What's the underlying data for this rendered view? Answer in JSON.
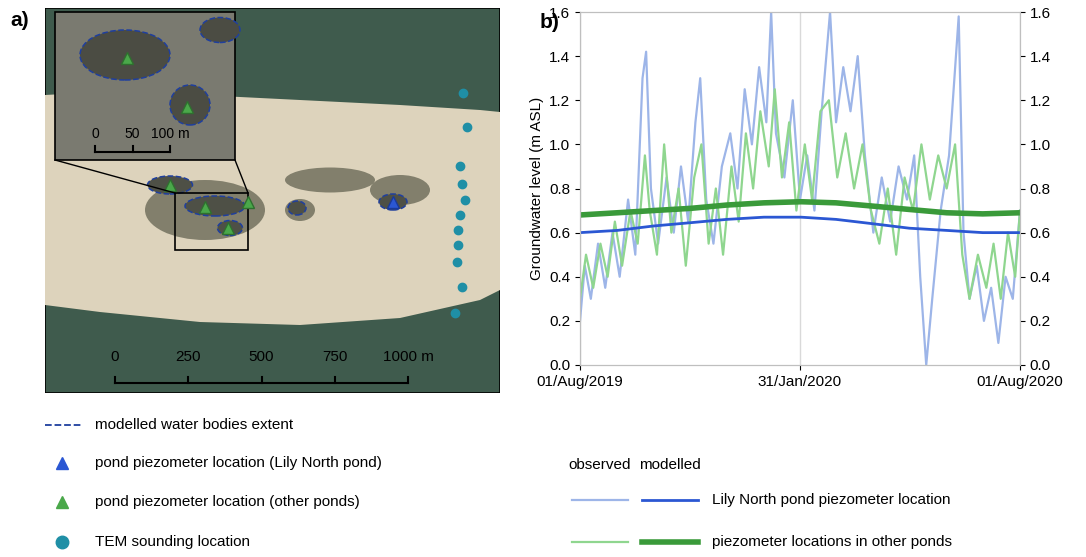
{
  "chart_data": [
    {
      "type": "map",
      "panel_label": "a)",
      "scale_bar": {
        "ticks": [
          0,
          250,
          500,
          750,
          {
            "value": 1000,
            "label": "1000 m"
          }
        ]
      },
      "inset_scale_bar": {
        "ticks": [
          0,
          50,
          {
            "value": 100,
            "label": "100 m"
          }
        ]
      },
      "legend_items": [
        {
          "label": "modelled water bodies extent",
          "marker": "dashed",
          "color": "#1f3f9e"
        },
        {
          "label": "pond piezometer location (Lily North pond)",
          "marker": "triangle",
          "color": "#2b57d3"
        },
        {
          "label": "pond piezometer location (other ponds)",
          "marker": "triangle",
          "color": "#4aa84a"
        },
        {
          "label": "TEM sounding location",
          "marker": "circle",
          "color": "#1f8fa6"
        }
      ]
    },
    {
      "type": "line",
      "panel_label": "b)",
      "y_label": "Groundwater level (m ASL)",
      "xlim": [
        "2019-08-01",
        "2020-08-01"
      ],
      "xticks": [
        {
          "value": "2019-08-01",
          "label": "01/Aug/2019"
        },
        {
          "value": "2020-01-31",
          "label": "31/Jan/2020"
        },
        {
          "value": "2020-08-01",
          "label": "01/Aug/2020"
        }
      ],
      "ylim": [
        0,
        1.6
      ],
      "yticks": [
        {
          "value": 0,
          "label": "0.0"
        },
        0.2,
        0.4,
        0.6,
        0.8,
        {
          "value": 1,
          "label": "1.0"
        },
        1.2,
        1.4,
        1.6
      ],
      "y2lim": [
        0,
        1.6
      ],
      "y2ticks": [
        {
          "value": 0,
          "label": "0.0"
        },
        0.2,
        0.4,
        0.6,
        0.8,
        {
          "value": 1,
          "label": "1.0"
        },
        1.2,
        1.4,
        1.6
      ],
      "grid": true,
      "legend_headers": [
        "observed",
        "modelled"
      ],
      "series": [
        {
          "name": "Lily North pond piezometer location",
          "group": "observed",
          "color": "#9db5e8",
          "x": [
            "2019-08-01",
            "2019-08-05",
            "2019-08-10",
            "2019-08-16",
            "2019-08-22",
            "2019-08-28",
            "2019-09-03",
            "2019-09-10",
            "2019-09-16",
            "2019-09-22",
            "2019-09-25",
            "2019-09-29",
            "2019-10-05",
            "2019-10-12",
            "2019-10-18",
            "2019-10-24",
            "2019-10-30",
            "2019-11-05",
            "2019-11-09",
            "2019-11-14",
            "2019-11-20",
            "2019-11-27",
            "2019-12-04",
            "2019-12-10",
            "2019-12-16",
            "2019-12-22",
            "2019-12-28",
            "2020-01-03",
            "2020-01-07",
            "2020-01-11",
            "2020-01-18",
            "2020-01-25",
            "2020-01-31",
            "2020-02-06",
            "2020-02-12",
            "2020-02-18",
            "2020-02-25",
            "2020-03-01",
            "2020-03-07",
            "2020-03-13",
            "2020-03-19",
            "2020-03-25",
            "2020-04-01",
            "2020-04-08",
            "2020-04-15",
            "2020-04-22",
            "2020-04-29",
            "2020-05-05",
            "2020-05-10",
            "2020-05-15",
            "2020-05-20",
            "2020-05-27",
            "2020-06-03",
            "2020-06-11",
            "2020-06-15",
            "2020-06-20",
            "2020-06-26",
            "2020-07-02",
            "2020-07-08",
            "2020-07-14",
            "2020-07-20",
            "2020-07-26",
            "2020-08-01"
          ],
          "values": [
            0.2,
            0.45,
            0.3,
            0.55,
            0.35,
            0.6,
            0.4,
            0.75,
            0.5,
            1.3,
            1.42,
            0.8,
            0.55,
            0.85,
            0.6,
            0.9,
            0.65,
            1.1,
            1.3,
            0.75,
            0.55,
            0.9,
            1.05,
            0.8,
            1.25,
            1.0,
            1.35,
            1.1,
            1.6,
            1.05,
            0.85,
            1.2,
            0.75,
            0.95,
            0.7,
            1.15,
            1.6,
            1.1,
            1.35,
            1.15,
            1.4,
            0.95,
            0.6,
            0.85,
            0.65,
            0.9,
            0.75,
            0.95,
            0.4,
            0.0,
            0.3,
            0.7,
            0.95,
            1.58,
            0.6,
            0.3,
            0.45,
            0.2,
            0.35,
            0.1,
            0.4,
            0.3,
            0.7
          ]
        },
        {
          "name": "piezometer locations in other ponds",
          "group": "observed",
          "color": "#8fd68f",
          "x": [
            "2019-08-01",
            "2019-08-06",
            "2019-08-12",
            "2019-08-18",
            "2019-08-24",
            "2019-08-30",
            "2019-09-05",
            "2019-09-12",
            "2019-09-18",
            "2019-09-24",
            "2019-09-28",
            "2019-10-04",
            "2019-10-10",
            "2019-10-16",
            "2019-10-22",
            "2019-10-28",
            "2019-11-04",
            "2019-11-10",
            "2019-11-16",
            "2019-11-22",
            "2019-11-28",
            "2019-12-05",
            "2019-12-11",
            "2019-12-17",
            "2019-12-23",
            "2019-12-29",
            "2020-01-05",
            "2020-01-10",
            "2020-01-16",
            "2020-01-22",
            "2020-01-28",
            "2020-02-04",
            "2020-02-10",
            "2020-02-17",
            "2020-02-24",
            "2020-03-02",
            "2020-03-09",
            "2020-03-16",
            "2020-03-23",
            "2020-03-30",
            "2020-04-06",
            "2020-04-13",
            "2020-04-20",
            "2020-04-27",
            "2020-05-04",
            "2020-05-11",
            "2020-05-18",
            "2020-05-25",
            "2020-06-01",
            "2020-06-08",
            "2020-06-14",
            "2020-06-20",
            "2020-06-27",
            "2020-07-04",
            "2020-07-10",
            "2020-07-16",
            "2020-07-22",
            "2020-07-28",
            "2020-08-01"
          ],
          "values": [
            0.3,
            0.5,
            0.35,
            0.55,
            0.4,
            0.65,
            0.45,
            0.7,
            0.55,
            0.95,
            0.7,
            0.5,
            1.0,
            0.6,
            0.8,
            0.45,
            0.85,
            1.0,
            0.55,
            0.8,
            0.5,
            0.9,
            0.65,
            1.05,
            0.8,
            1.15,
            0.9,
            1.25,
            0.85,
            1.1,
            0.7,
            1.0,
            0.75,
            1.15,
            1.2,
            0.85,
            1.05,
            0.8,
            1.0,
            0.7,
            0.55,
            0.8,
            0.5,
            0.85,
            0.7,
            1.0,
            0.75,
            0.95,
            0.8,
            1.0,
            0.5,
            0.3,
            0.5,
            0.35,
            0.55,
            0.3,
            0.6,
            0.4,
            0.7
          ]
        },
        {
          "name": "Lily North pond piezometer location",
          "group": "modelled",
          "color": "#2b57d3",
          "x": [
            "2019-08-01",
            "2019-09-01",
            "2019-10-01",
            "2019-11-01",
            "2019-12-01",
            "2020-01-01",
            "2020-02-01",
            "2020-03-01",
            "2020-04-01",
            "2020-05-01",
            "2020-06-01",
            "2020-07-01",
            "2020-08-01"
          ],
          "values": [
            0.6,
            0.61,
            0.63,
            0.645,
            0.66,
            0.67,
            0.67,
            0.66,
            0.64,
            0.62,
            0.61,
            0.6,
            0.6
          ]
        },
        {
          "name": "piezometer locations in other ponds",
          "group": "modelled",
          "color": "#3a9a3a",
          "x": [
            "2019-08-01",
            "2019-09-01",
            "2019-10-01",
            "2019-11-01",
            "2019-12-01",
            "2020-01-01",
            "2020-02-01",
            "2020-03-01",
            "2020-04-01",
            "2020-05-01",
            "2020-06-01",
            "2020-07-01",
            "2020-08-01"
          ],
          "values": [
            0.68,
            0.69,
            0.7,
            0.71,
            0.725,
            0.735,
            0.74,
            0.735,
            0.72,
            0.705,
            0.69,
            0.685,
            0.69
          ]
        }
      ]
    }
  ]
}
